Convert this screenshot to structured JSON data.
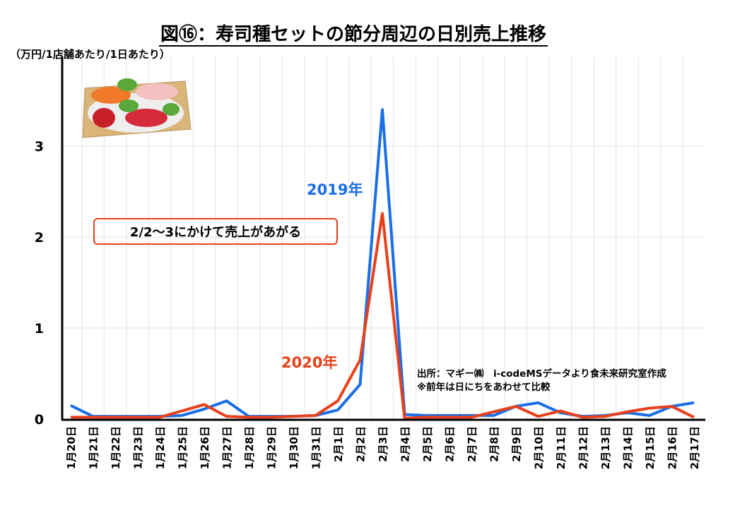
{
  "title": "図⑯：寿司種セットの節分周辺の日別売上推移",
  "unit": "（万円/1店舗あたり/1日あたり）",
  "callout": "2/2～3にかけて売上があがる",
  "source": {
    "line1": "出所：マギー㈱　i-codeMSデータより食未来研究室作成",
    "line2": "※前年は日にちをあわせて比較"
  },
  "chart_data": {
    "type": "line",
    "title": "図⑯：寿司種セットの節分周辺の日別売上推移",
    "ylabel": "（万円/1店舗あたり/1日あたり）",
    "xlabel": "",
    "ylim": [
      0,
      3.8
    ],
    "yticks": [
      0,
      1,
      2,
      3
    ],
    "grid": true,
    "categories": [
      "1月20日",
      "1月21日",
      "1月22日",
      "1月23日",
      "1月24日",
      "1月25日",
      "1月26日",
      "1月27日",
      "1月28日",
      "1月29日",
      "1月30日",
      "1月31日",
      "2月1日",
      "2月2日",
      "2月3日",
      "2月4日",
      "2月5日",
      "2月6日",
      "2月7日",
      "2月8日",
      "2月9日",
      "2月10日",
      "2月11日",
      "2月12日",
      "2月13日",
      "2月14日",
      "2月15日",
      "2月16日",
      "2月17日"
    ],
    "series": [
      {
        "name": "2019年",
        "color": "#1a6ee8",
        "values": [
          0.15,
          0.03,
          0.03,
          0.03,
          0.03,
          0.04,
          0.11,
          0.2,
          0.03,
          0.03,
          0.03,
          0.04,
          0.1,
          0.38,
          3.4,
          0.05,
          0.04,
          0.04,
          0.04,
          0.04,
          0.14,
          0.18,
          0.07,
          0.03,
          0.04,
          0.07,
          0.04,
          0.14,
          0.18
        ]
      },
      {
        "name": "2020年",
        "color": "#e8401a",
        "values": [
          0.02,
          0.02,
          0.02,
          0.02,
          0.02,
          0.09,
          0.16,
          0.03,
          0.02,
          0.02,
          0.03,
          0.04,
          0.2,
          0.65,
          2.26,
          0.01,
          0.02,
          0.02,
          0.02,
          0.08,
          0.14,
          0.03,
          0.09,
          0.02,
          0.03,
          0.08,
          0.12,
          0.14,
          0.02
        ]
      }
    ]
  }
}
